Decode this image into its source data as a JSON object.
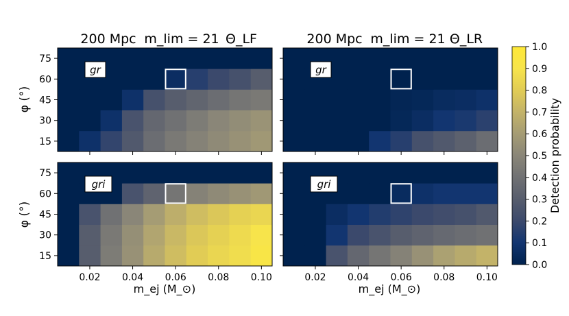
{
  "chart_data": [
    {
      "type": "heatmap",
      "title": {
        "distance": "200 Mpc",
        "mlim": "m_lim = 21",
        "theta": "Θ_LF"
      },
      "band_label": "gr",
      "xlabel": "m_ej (M_⊙)",
      "ylabel": "φ (°)",
      "xlim": [
        0.005,
        0.105
      ],
      "ylim": [
        7.5,
        82.5
      ],
      "x": [
        0.01,
        0.02,
        0.03,
        0.04,
        0.05,
        0.06,
        0.07,
        0.08,
        0.09,
        0.1
      ],
      "y": [
        15,
        30,
        45,
        60,
        75
      ],
      "z": [
        [
          0.0,
          0.08,
          0.18,
          0.28,
          0.38,
          0.44,
          0.48,
          0.52,
          0.55,
          0.58
        ],
        [
          0.0,
          0.0,
          0.08,
          0.25,
          0.35,
          0.4,
          0.45,
          0.5,
          0.53,
          0.56
        ],
        [
          0.0,
          0.0,
          0.0,
          0.08,
          0.24,
          0.3,
          0.34,
          0.38,
          0.42,
          0.44
        ],
        [
          0.0,
          0.0,
          0.0,
          0.0,
          0.0,
          0.06,
          0.15,
          0.2,
          0.24,
          0.3
        ],
        [
          0.0,
          0.0,
          0.0,
          0.0,
          0.0,
          0.0,
          0.0,
          0.0,
          0.0,
          0.0
        ]
      ],
      "highlight": {
        "x": 0.06,
        "y": 60
      }
    },
    {
      "type": "heatmap",
      "title": {
        "distance": "200 Mpc",
        "mlim": "m_lim = 21",
        "theta": "Θ_LR"
      },
      "band_label": "gr",
      "xlabel": "m_ej (M_⊙)",
      "ylabel": "",
      "xlim": [
        0.005,
        0.105
      ],
      "ylim": [
        7.5,
        82.5
      ],
      "x": [
        0.01,
        0.02,
        0.03,
        0.04,
        0.05,
        0.06,
        0.07,
        0.08,
        0.09,
        0.1
      ],
      "y": [
        15,
        30,
        45,
        60,
        75
      ],
      "z": [
        [
          0.0,
          0.0,
          0.0,
          0.0,
          0.1,
          0.15,
          0.24,
          0.28,
          0.32,
          0.38
        ],
        [
          0.0,
          0.0,
          0.0,
          0.0,
          0.0,
          0.03,
          0.06,
          0.1,
          0.12,
          0.16
        ],
        [
          0.0,
          0.0,
          0.0,
          0.0,
          0.0,
          0.02,
          0.03,
          0.05,
          0.06,
          0.08
        ],
        [
          0.0,
          0.0,
          0.0,
          0.0,
          0.0,
          0.0,
          0.0,
          0.0,
          0.0,
          0.0
        ],
        [
          0.0,
          0.0,
          0.0,
          0.0,
          0.0,
          0.0,
          0.0,
          0.0,
          0.0,
          0.0
        ]
      ],
      "highlight": {
        "x": 0.06,
        "y": 60
      }
    },
    {
      "type": "heatmap",
      "band_label": "gri",
      "xlabel": "m_ej (M_⊙)",
      "ylabel": "φ (°)",
      "xlim": [
        0.005,
        0.105
      ],
      "ylim": [
        7.5,
        82.5
      ],
      "x": [
        0.01,
        0.02,
        0.03,
        0.04,
        0.05,
        0.06,
        0.07,
        0.08,
        0.09,
        0.1
      ],
      "y": [
        15,
        30,
        45,
        60,
        75
      ],
      "z": [
        [
          0.0,
          0.3,
          0.45,
          0.55,
          0.66,
          0.74,
          0.8,
          0.84,
          0.87,
          0.92
        ],
        [
          0.0,
          0.3,
          0.44,
          0.54,
          0.64,
          0.72,
          0.78,
          0.82,
          0.86,
          0.9
        ],
        [
          0.0,
          0.25,
          0.4,
          0.5,
          0.6,
          0.68,
          0.74,
          0.78,
          0.82,
          0.84
        ],
        [
          0.0,
          0.0,
          0.0,
          0.25,
          0.33,
          0.42,
          0.48,
          0.52,
          0.55,
          0.58
        ],
        [
          0.0,
          0.0,
          0.0,
          0.0,
          0.0,
          0.0,
          0.0,
          0.0,
          0.0,
          0.0
        ]
      ],
      "highlight": {
        "x": 0.06,
        "y": 60
      }
    },
    {
      "type": "heatmap",
      "band_label": "gri",
      "xlabel": "m_ej (M_⊙)",
      "ylabel": "",
      "xlim": [
        0.005,
        0.105
      ],
      "ylim": [
        7.5,
        82.5
      ],
      "x": [
        0.01,
        0.02,
        0.03,
        0.04,
        0.05,
        0.06,
        0.07,
        0.08,
        0.09,
        0.1
      ],
      "y": [
        15,
        30,
        45,
        60,
        75
      ],
      "z": [
        [
          0.0,
          0.0,
          0.25,
          0.35,
          0.42,
          0.48,
          0.55,
          0.62,
          0.66,
          0.7
        ],
        [
          0.0,
          0.0,
          0.1,
          0.2,
          0.25,
          0.3,
          0.33,
          0.36,
          0.38,
          0.4
        ],
        [
          0.0,
          0.0,
          0.06,
          0.1,
          0.14,
          0.17,
          0.2,
          0.22,
          0.24,
          0.28
        ],
        [
          0.0,
          0.0,
          0.0,
          0.0,
          0.0,
          0.05,
          0.08,
          0.1,
          0.1,
          0.1
        ],
        [
          0.0,
          0.0,
          0.0,
          0.0,
          0.0,
          0.0,
          0.0,
          0.0,
          0.0,
          0.0
        ]
      ],
      "highlight": {
        "x": 0.06,
        "y": 60
      }
    }
  ],
  "colorbar": {
    "label": "Detection probability",
    "range": [
      0.0,
      1.0
    ],
    "ticks": [
      "0.0",
      "0.1",
      "0.2",
      "0.3",
      "0.4",
      "0.5",
      "0.6",
      "0.7",
      "0.8",
      "0.9",
      "1.0"
    ],
    "colormap": "cividis"
  },
  "y_tick_labels": [
    "75",
    "60",
    "45",
    "30",
    "15"
  ],
  "x_tick_labels": [
    "0.02",
    "0.04",
    "0.06",
    "0.08",
    "0.10"
  ]
}
